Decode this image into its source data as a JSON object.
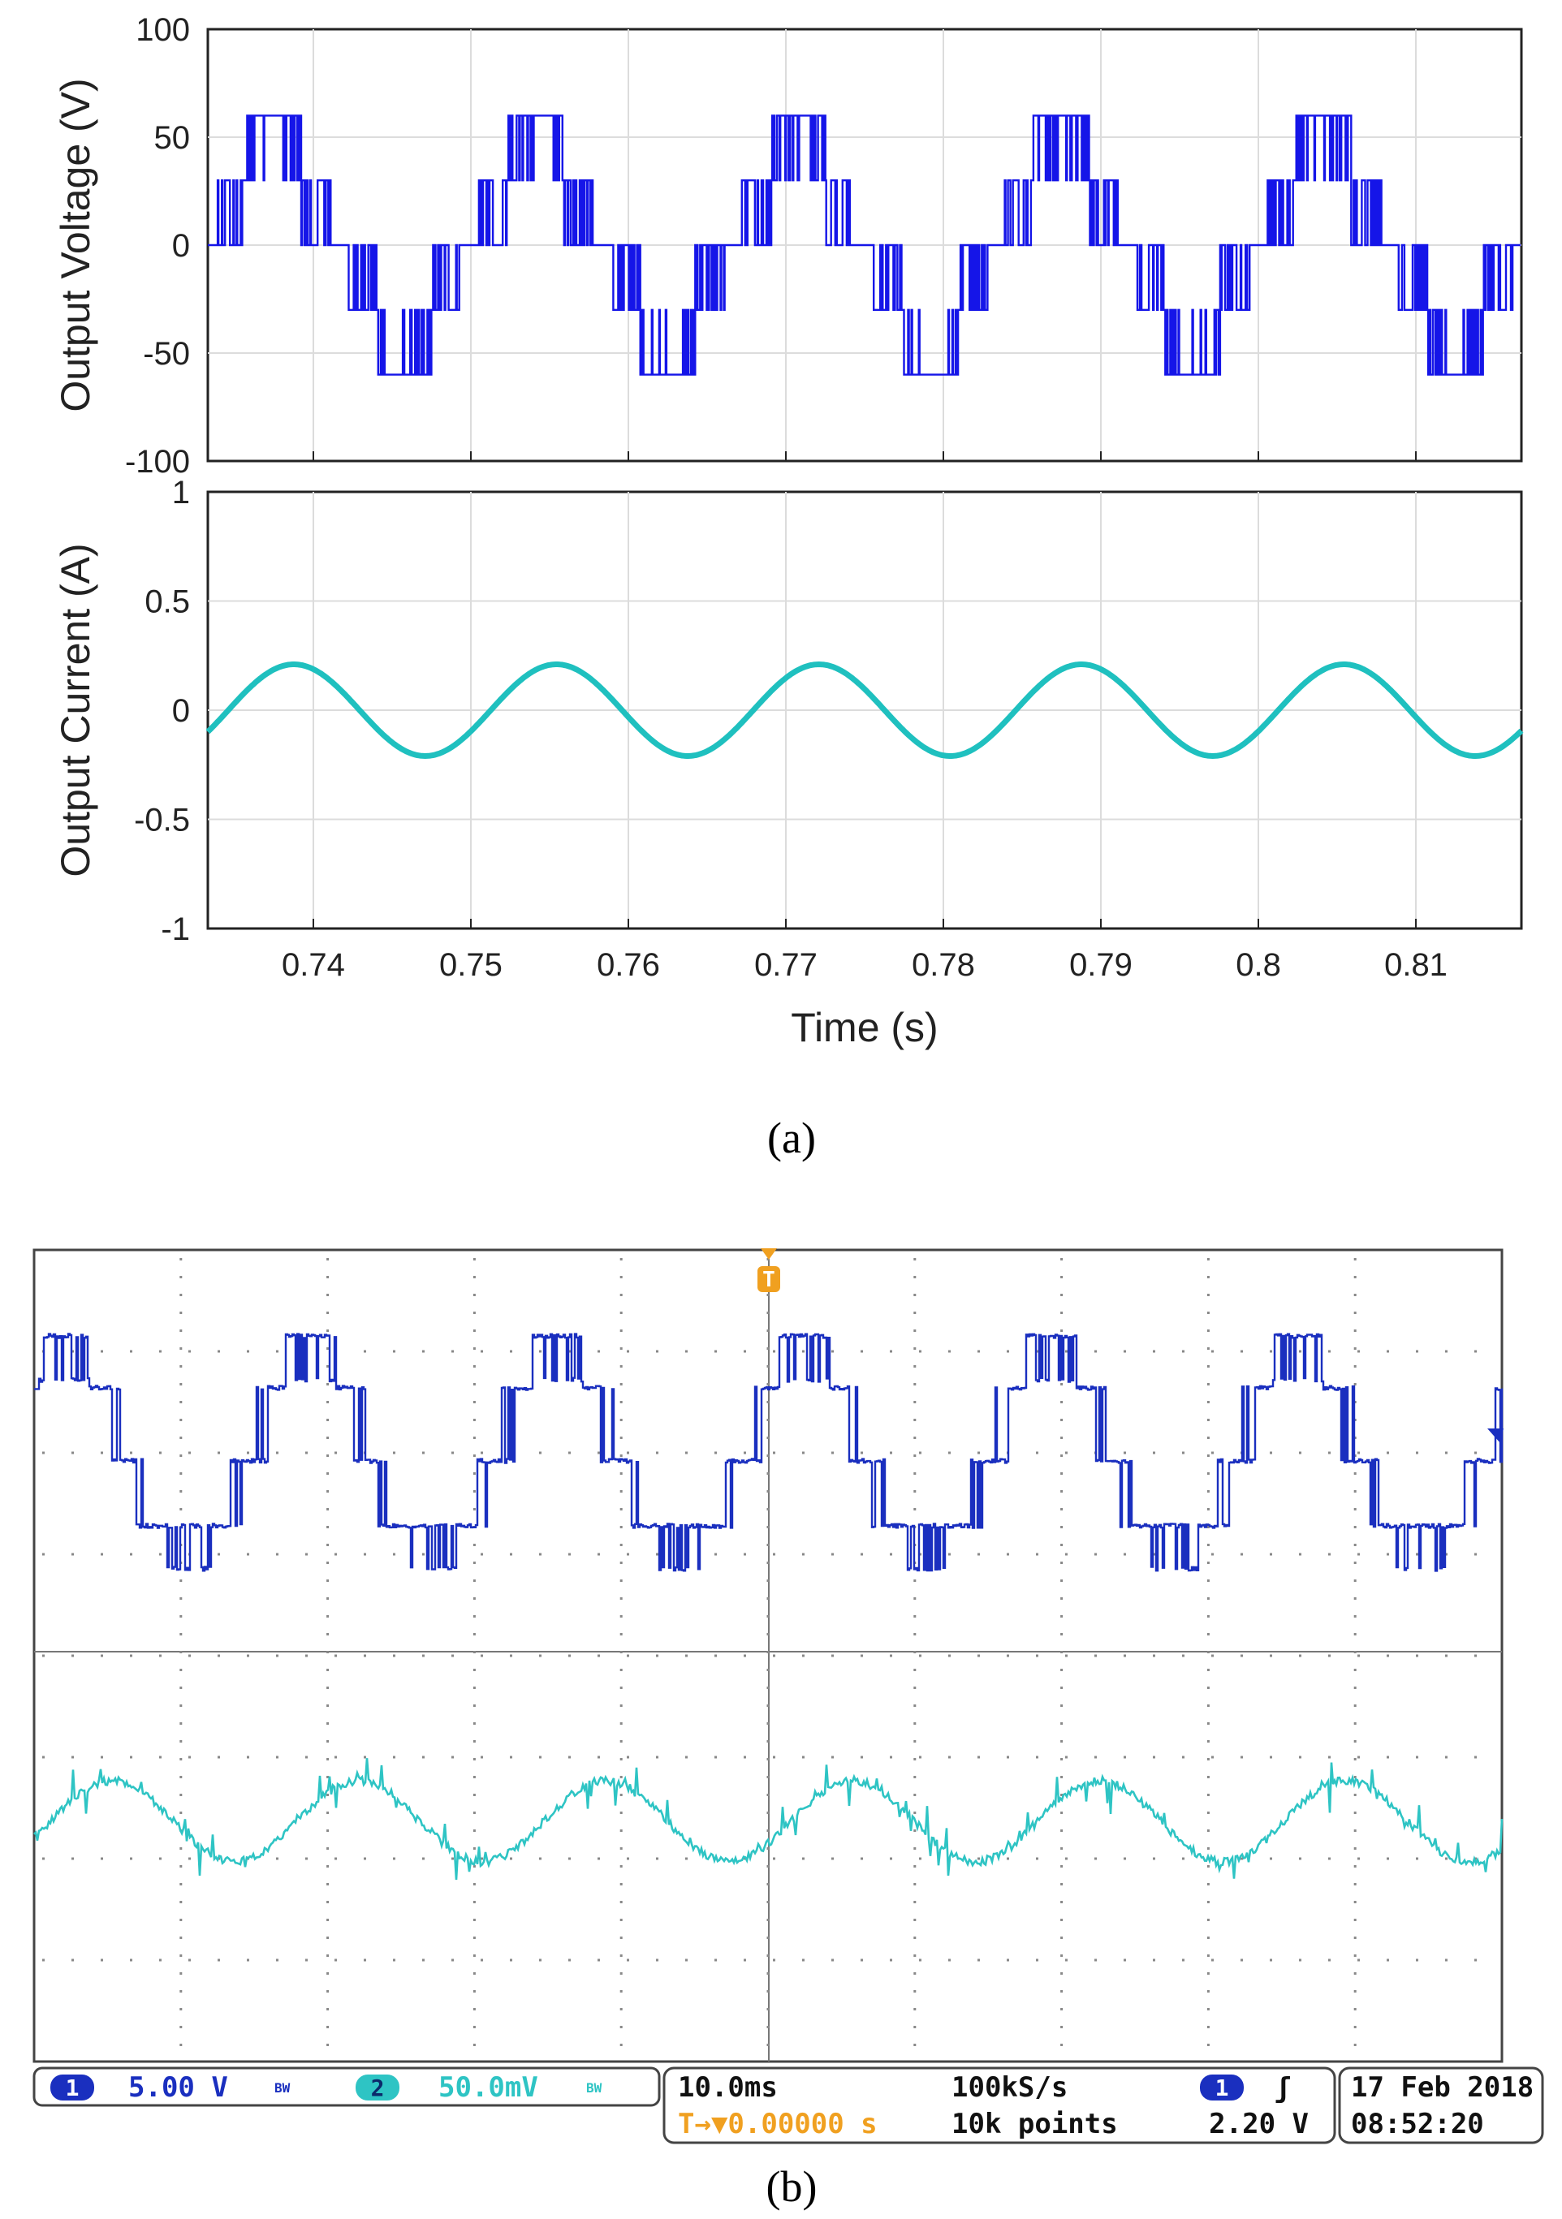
{
  "chart_data": [
    {
      "panel": "a",
      "type": "line",
      "subplot": "top",
      "ylabel": "Output Voltage (V)",
      "xlim": [
        0.7333,
        0.8167
      ],
      "ylim": [
        -100,
        100
      ],
      "yticks": [
        "100",
        "50",
        "0",
        "-50",
        "-100"
      ],
      "grid": true,
      "series": [
        {
          "name": "Output Voltage",
          "color": "#1515e8",
          "frequency_hz": 60,
          "levels": [
            -60,
            -30,
            0,
            30,
            60
          ]
        }
      ]
    },
    {
      "panel": "a",
      "type": "line",
      "subplot": "bottom",
      "ylabel": "Output Current (A)",
      "xlabel": "Time (s)",
      "xlim": [
        0.7333,
        0.8167
      ],
      "ylim": [
        -1,
        1
      ],
      "yticks": [
        "1",
        "0.5",
        "0",
        "-0.5",
        "-1"
      ],
      "xticks": [
        "0.74",
        "0.75",
        "0.76",
        "0.77",
        "0.78",
        "0.79",
        "0.8",
        "0.81"
      ],
      "grid": true,
      "series": [
        {
          "name": "Output Current",
          "color": "#1fc0bf",
          "amplitude": 0.21,
          "frequency_hz": 60
        }
      ]
    },
    {
      "panel": "b",
      "type": "line",
      "subplot": "oscilloscope",
      "series": [
        {
          "name": "CH1 voltage",
          "color": "#1a2fbf",
          "volts_per_div": 5.0
        },
        {
          "name": "CH2 current",
          "color": "#2ec4c4",
          "volts_per_div": 0.05
        }
      ],
      "time_per_div_ms": 10.0
    }
  ],
  "captions": {
    "a": "(a)",
    "b": "(b)"
  },
  "scope": {
    "trigger_marker": "T",
    "ch1_num": "1",
    "ch1_scale": "5.00 V",
    "ch1_bw": "BW",
    "ch2_num": "2",
    "ch2_scale": "50.0mV",
    "ch2_bw": "BW",
    "timebase": "10.0ms",
    "sample_rate": "100kS/s",
    "trigger_pos": "T→▼0.00000 s",
    "record_length": "10k points",
    "trig_ch": "1",
    "trig_slope": "ʃ",
    "trig_level": "2.20 V",
    "date": "17 Feb  2018",
    "time": "08:52:20"
  },
  "colors": {
    "blue": "#1515e8",
    "cyan": "#1fc0bf",
    "scope_blue": "#1a2fbf",
    "scope_cyan": "#2ec4c4",
    "orange": "#f0a020"
  }
}
